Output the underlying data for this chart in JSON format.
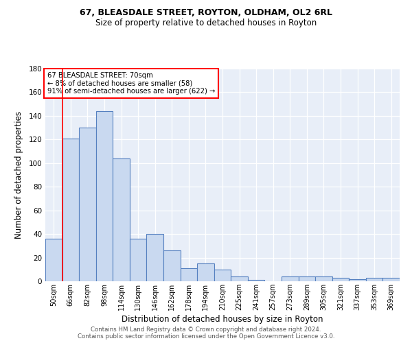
{
  "title_line1": "67, BLEASDALE STREET, ROYTON, OLDHAM, OL2 6RL",
  "title_line2": "Size of property relative to detached houses in Royton",
  "xlabel": "Distribution of detached houses by size in Royton",
  "ylabel": "Number of detached properties",
  "footnote_line1": "Contains HM Land Registry data © Crown copyright and database right 2024.",
  "footnote_line2": "Contains public sector information licensed under the Open Government Licence v3.0.",
  "categories": [
    "50sqm",
    "66sqm",
    "82sqm",
    "98sqm",
    "114sqm",
    "130sqm",
    "146sqm",
    "162sqm",
    "178sqm",
    "194sqm",
    "210sqm",
    "225sqm",
    "241sqm",
    "257sqm",
    "273sqm",
    "289sqm",
    "305sqm",
    "321sqm",
    "337sqm",
    "353sqm",
    "369sqm"
  ],
  "values": [
    36,
    121,
    130,
    144,
    104,
    36,
    40,
    26,
    11,
    15,
    10,
    4,
    1,
    0,
    4,
    4,
    4,
    3,
    2,
    3,
    3
  ],
  "bar_color": "#c9d9f0",
  "bar_edge_color": "#5580c0",
  "ylim": [
    0,
    180
  ],
  "yticks": [
    0,
    20,
    40,
    60,
    80,
    100,
    120,
    140,
    160,
    180
  ],
  "red_line_index": 1,
  "annotation_text_line1": "67 BLEASDALE STREET: 70sqm",
  "annotation_text_line2": "← 8% of detached houses are smaller (58)",
  "annotation_text_line3": "91% of semi-detached houses are larger (622) →",
  "bg_color": "#e8eef8",
  "title_fontsize": 9,
  "subtitle_fontsize": 8.5
}
